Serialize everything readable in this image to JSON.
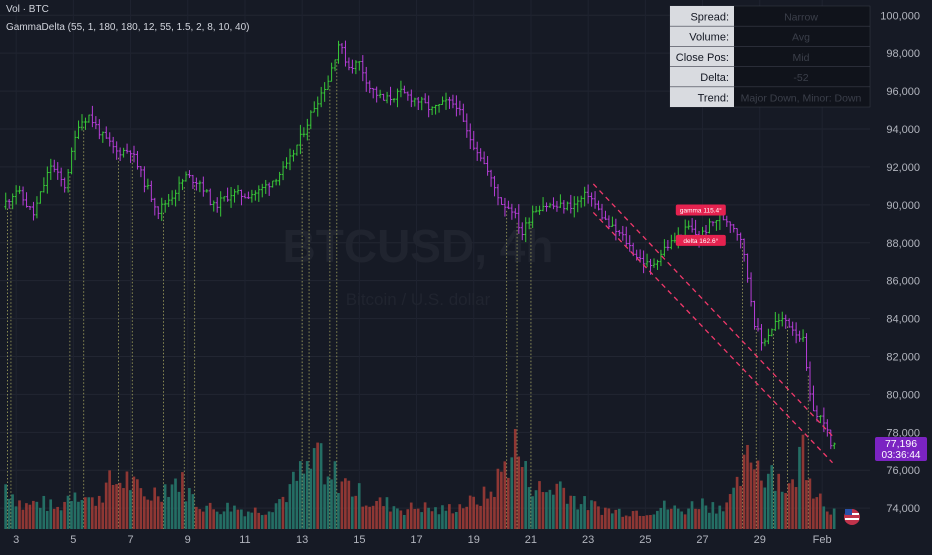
{
  "indicators": {
    "vol_label": "Vol · BTC",
    "gamma_label": "GammaDelta (55, 1, 180, 180, 12, 55, 1.5, 2, 8, 10, 40)"
  },
  "watermark": {
    "symbol": "BTCUSD, 4h",
    "subtitle": "Bitcoin / U.S. dollar"
  },
  "info_table": [
    {
      "label": "Spread:",
      "value": "Narrow"
    },
    {
      "label": "Volume:",
      "value": "Avg"
    },
    {
      "label": "Close Pos:",
      "value": "Mid"
    },
    {
      "label": "Delta:",
      "value": "-52"
    },
    {
      "label": "Trend:",
      "value": "Major Down, Minor: Down"
    }
  ],
  "price_tag": {
    "price": "77,196",
    "countdown": "03:36:44"
  },
  "annotations": {
    "gamma": "gamma 115.4°",
    "delta": "delta 162.6°"
  },
  "colors": {
    "background": "#161a25",
    "up": "#38c838",
    "down": "#b73ed8",
    "vol_up": "#26786c",
    "vol_down": "#9c3b36",
    "vline": "#c8c86e",
    "channel": "#f0386a",
    "price_tag": "#7b23c2"
  },
  "chart_data": {
    "type": "ohlc",
    "y_axis": {
      "ylim": [
        72900,
        100700
      ],
      "ticks": [
        74000,
        76000,
        78000,
        80000,
        82000,
        84000,
        86000,
        88000,
        90000,
        92000,
        94000,
        96000,
        98000,
        100000
      ],
      "tick_labels": [
        "74,000",
        "76,000",
        "78,000",
        "80,000",
        "82,000",
        "84,000",
        "86,000",
        "88,000",
        "90,000",
        "92,000",
        "94,000",
        "96,000",
        "98,000",
        "100,000"
      ]
    },
    "x_axis": {
      "labels": [
        "3",
        "5",
        "7",
        "9",
        "11",
        "13",
        "15",
        "17",
        "19",
        "21",
        "23",
        "25",
        "27",
        "29",
        "Feb"
      ],
      "label_index": [
        3.5,
        20,
        36.5,
        53,
        69.5,
        86,
        102.5,
        119,
        135.5,
        152,
        168.5,
        185,
        201.5,
        218,
        236
      ],
      "range": [
        0,
        240
      ]
    },
    "price_anchors": [
      [
        0,
        89900
      ],
      [
        4,
        90800
      ],
      [
        9,
        89500
      ],
      [
        14,
        92100
      ],
      [
        18,
        91000
      ],
      [
        22,
        94300
      ],
      [
        25,
        94700
      ],
      [
        29,
        93600
      ],
      [
        33,
        92800
      ],
      [
        37,
        92900
      ],
      [
        41,
        91200
      ],
      [
        45,
        89700
      ],
      [
        49,
        90500
      ],
      [
        53,
        91500
      ],
      [
        57,
        91200
      ],
      [
        61,
        89900
      ],
      [
        66,
        90600
      ],
      [
        70,
        90500
      ],
      [
        74,
        90700
      ],
      [
        78,
        91300
      ],
      [
        82,
        92000
      ],
      [
        86,
        93500
      ],
      [
        90,
        95200
      ],
      [
        94,
        96600
      ],
      [
        97,
        98500
      ],
      [
        100,
        97300
      ],
      [
        103,
        97500
      ],
      [
        106,
        96200
      ],
      [
        110,
        95500
      ],
      [
        115,
        95900
      ],
      [
        120,
        95500
      ],
      [
        124,
        95000
      ],
      [
        128,
        95400
      ],
      [
        131,
        95300
      ],
      [
        134,
        93800
      ],
      [
        138,
        92600
      ],
      [
        141,
        91300
      ],
      [
        144,
        90100
      ],
      [
        147,
        89800
      ],
      [
        150,
        88500
      ],
      [
        153,
        89700
      ],
      [
        156,
        90000
      ],
      [
        160,
        89900
      ],
      [
        165,
        90000
      ],
      [
        169,
        90600
      ],
      [
        172,
        89700
      ],
      [
        175,
        88900
      ],
      [
        179,
        88300
      ],
      [
        183,
        87300
      ],
      [
        187,
        86700
      ],
      [
        191,
        87700
      ],
      [
        195,
        88300
      ],
      [
        198,
        88800
      ],
      [
        201,
        88300
      ],
      [
        204,
        88900
      ],
      [
        207,
        89400
      ],
      [
        210,
        89100
      ],
      [
        213,
        88300
      ],
      [
        215,
        86200
      ],
      [
        217,
        83800
      ],
      [
        219,
        82700
      ],
      [
        221,
        83200
      ],
      [
        223,
        83800
      ],
      [
        226,
        83900
      ],
      [
        229,
        83300
      ],
      [
        231,
        82800
      ],
      [
        233,
        79800
      ],
      [
        235,
        78800
      ],
      [
        237,
        78700
      ],
      [
        239,
        77200
      ]
    ],
    "volume": [
      [
        0,
        0.5
      ],
      [
        5,
        0.25
      ],
      [
        10,
        0.3
      ],
      [
        15,
        0.22
      ],
      [
        20,
        0.45
      ],
      [
        25,
        0.3
      ],
      [
        30,
        0.5
      ],
      [
        35,
        0.55
      ],
      [
        40,
        0.35
      ],
      [
        45,
        0.45
      ],
      [
        50,
        0.55
      ],
      [
        55,
        0.3
      ],
      [
        60,
        0.22
      ],
      [
        65,
        0.25
      ],
      [
        70,
        0.2
      ],
      [
        75,
        0.22
      ],
      [
        80,
        0.35
      ],
      [
        85,
        0.6
      ],
      [
        88,
        0.65
      ],
      [
        90,
        1.0
      ],
      [
        92,
        0.45
      ],
      [
        95,
        0.6
      ],
      [
        100,
        0.45
      ],
      [
        105,
        0.3
      ],
      [
        110,
        0.28
      ],
      [
        115,
        0.22
      ],
      [
        120,
        0.25
      ],
      [
        125,
        0.2
      ],
      [
        130,
        0.25
      ],
      [
        135,
        0.3
      ],
      [
        140,
        0.4
      ],
      [
        144,
        0.7
      ],
      [
        147,
        0.95
      ],
      [
        150,
        0.6
      ],
      [
        155,
        0.4
      ],
      [
        160,
        0.5
      ],
      [
        165,
        0.3
      ],
      [
        170,
        0.25
      ],
      [
        175,
        0.2
      ],
      [
        180,
        0.2
      ],
      [
        185,
        0.2
      ],
      [
        190,
        0.25
      ],
      [
        195,
        0.2
      ],
      [
        200,
        0.3
      ],
      [
        205,
        0.25
      ],
      [
        210,
        0.35
      ],
      [
        214,
        0.75
      ],
      [
        216,
        0.85
      ],
      [
        218,
        0.6
      ],
      [
        221,
        0.7
      ],
      [
        224,
        0.5
      ],
      [
        227,
        0.45
      ],
      [
        230,
        0.95
      ],
      [
        233,
        0.5
      ],
      [
        236,
        0.3
      ],
      [
        239,
        0.2
      ]
    ],
    "vertical_markers": [
      1,
      2,
      19,
      23,
      33,
      37,
      46,
      52,
      55,
      86,
      88,
      94,
      96,
      145,
      148,
      152,
      213,
      217,
      222,
      226,
      232
    ],
    "channel": {
      "x": [
        170,
        239
      ],
      "upper": [
        91100,
        77800
      ],
      "lower": [
        89600,
        76400
      ]
    },
    "gamma_box_at": [
      201,
      89700
    ],
    "delta_box_at": [
      201,
      88100
    ]
  }
}
